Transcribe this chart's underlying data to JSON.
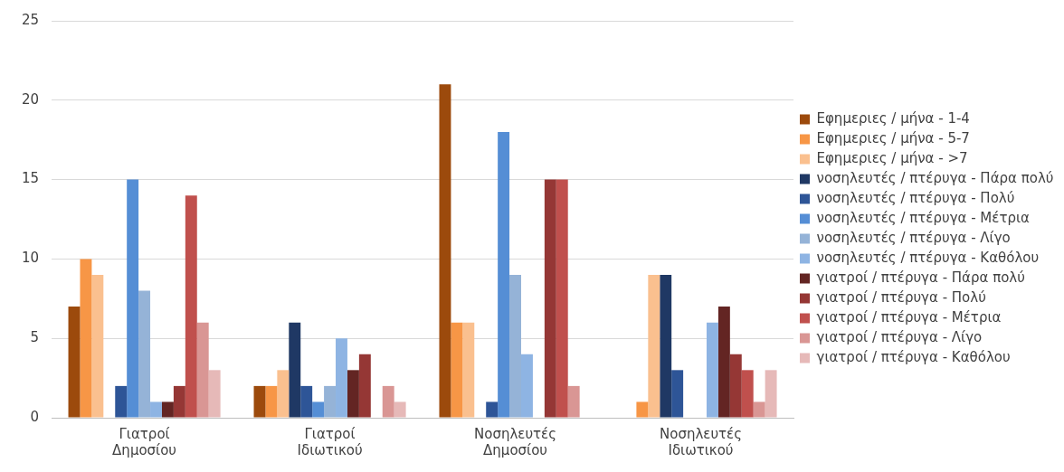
{
  "chart_data": {
    "type": "bar",
    "categories": [
      "Γιατροί Δημοσίου",
      "Γιατροί Ιδιωτικού",
      "Νοσηλευτές Δημοσίου",
      "Νοσηλευτές Ιδιωτικού"
    ],
    "series": [
      {
        "name": "Εφημεριες / μήνα - 1-4",
        "color": "#9c4a0c",
        "values": [
          7,
          2,
          21,
          0
        ]
      },
      {
        "name": "Εφημεριες / μήνα - 5-7",
        "color": "#f79646",
        "values": [
          10,
          2,
          6,
          1
        ]
      },
      {
        "name": "Εφημεριες / μήνα - >7",
        "color": "#fac08f",
        "values": [
          9,
          3,
          6,
          9
        ]
      },
      {
        "name": "νοσηλευτές / πτέρυγα - Πάρα πολύ",
        "color": "#1f3864",
        "values": [
          0,
          6,
          0,
          9
        ]
      },
      {
        "name": "νοσηλευτές / πτέρυγα - Πολύ",
        "color": "#2e5597",
        "values": [
          2,
          2,
          1,
          3
        ]
      },
      {
        "name": "νοσηλευτές / πτέρυγα - Μέτρια",
        "color": "#558ed5",
        "values": [
          15,
          1,
          18,
          0
        ]
      },
      {
        "name": "νοσηλευτές / πτέρυγα - Λίγο",
        "color": "#95b3d7",
        "values": [
          8,
          2,
          9,
          0
        ]
      },
      {
        "name": "νοσηλευτές / πτέρυγα - Καθόλου",
        "color": "#8eb4e3",
        "values": [
          1,
          5,
          4,
          6
        ]
      },
      {
        "name": "γιατροί / πτέρυγα - Πάρα πολύ",
        "color": "#632523",
        "values": [
          1,
          3,
          0,
          7
        ]
      },
      {
        "name": "γιατροί / πτέρυγα - Πολύ",
        "color": "#953735",
        "values": [
          2,
          4,
          15,
          4
        ]
      },
      {
        "name": "γιατροί / πτέρυγα - Μέτρια",
        "color": "#c0504d",
        "values": [
          14,
          0,
          15,
          3
        ]
      },
      {
        "name": "γιατροί / πτέρυγα - Λίγο",
        "color": "#d99694",
        "values": [
          6,
          2,
          2,
          1
        ]
      },
      {
        "name": "γιατροί / πτέρυγα - Καθόλου",
        "color": "#e6b9b8",
        "values": [
          3,
          1,
          0,
          3
        ]
      }
    ],
    "ylim": [
      0,
      25
    ],
    "yticks": [
      0,
      5,
      10,
      15,
      20,
      25
    ],
    "grid": "y",
    "legend": "right"
  }
}
